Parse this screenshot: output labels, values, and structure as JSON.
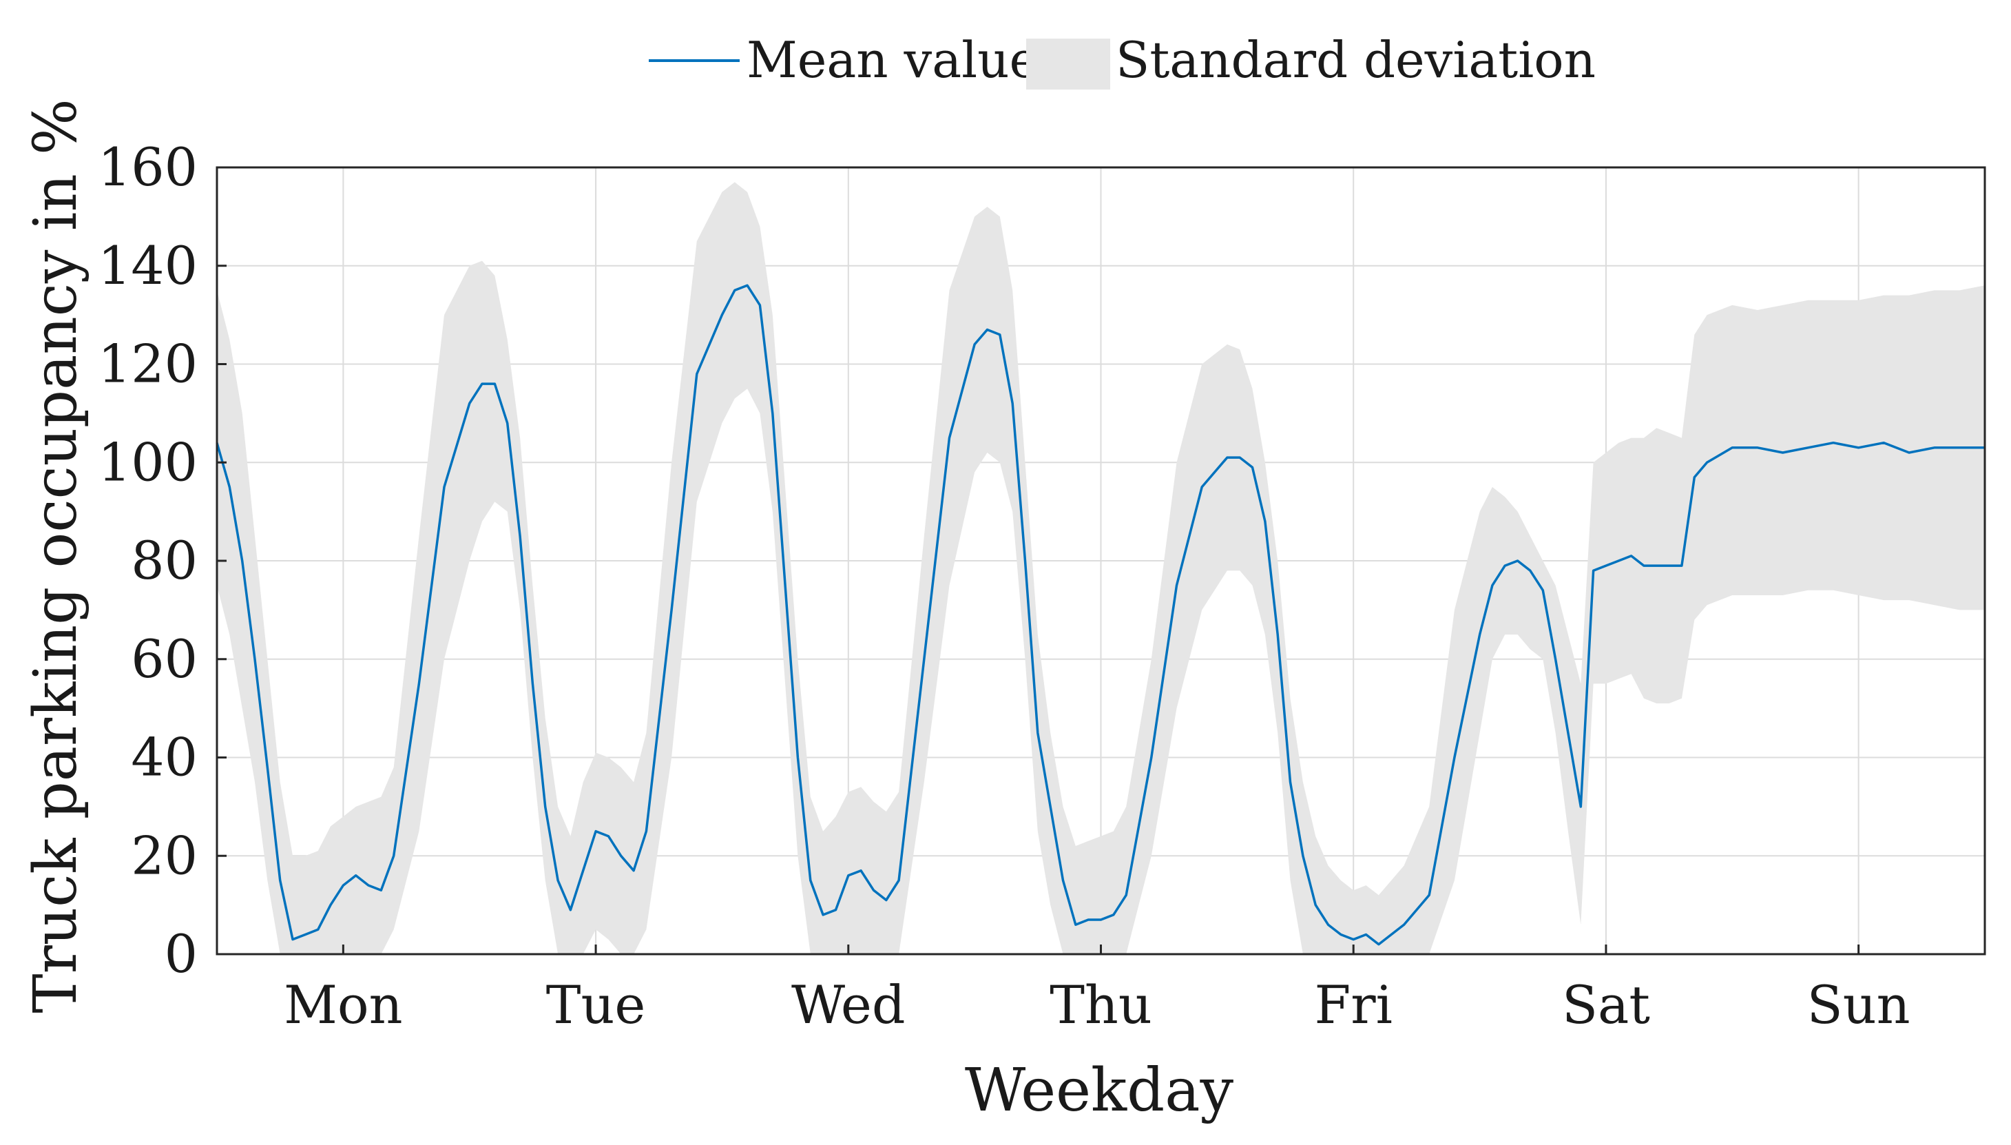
{
  "chart_data": {
    "type": "line",
    "title": "",
    "xlabel": "Weekday",
    "ylabel": "Truck parking occupancy in %",
    "ylim": [
      0,
      160
    ],
    "xlim": [
      0,
      7
    ],
    "y_ticks": [
      "0",
      "20",
      "40",
      "60",
      "80",
      "100",
      "120",
      "140",
      "160"
    ],
    "x_ticks": [
      {
        "label": "Mon",
        "value": 0.5
      },
      {
        "label": "Tue",
        "value": 1.5
      },
      {
        "label": "Wed",
        "value": 2.5
      },
      {
        "label": "Thu",
        "value": 3.5
      },
      {
        "label": "Fri",
        "value": 4.5
      },
      {
        "label": "Sat",
        "value": 5.5
      },
      {
        "label": "Sun",
        "value": 6.5
      }
    ],
    "grid": true,
    "legend": {
      "position": "top",
      "entries": [
        {
          "label": "Mean value",
          "kind": "line",
          "color": "#0072bd"
        },
        {
          "label": "Standard deviation",
          "kind": "band",
          "color": "#e6e6e6"
        }
      ]
    },
    "series": [
      {
        "name": "Mean value",
        "color": "#0072bd",
        "x": [
          0,
          0.05,
          0.1,
          0.15,
          0.2,
          0.25,
          0.3,
          0.35,
          0.4,
          0.45,
          0.5,
          0.55,
          0.6,
          0.65,
          0.7,
          0.8,
          0.9,
          1.0,
          1.05,
          1.1,
          1.15,
          1.2,
          1.25,
          1.3,
          1.35,
          1.4,
          1.45,
          1.5,
          1.55,
          1.6,
          1.65,
          1.7,
          1.8,
          1.9,
          2.0,
          2.05,
          2.1,
          2.15,
          2.2,
          2.25,
          2.3,
          2.35,
          2.4,
          2.45,
          2.5,
          2.55,
          2.6,
          2.65,
          2.7,
          2.8,
          2.9,
          3.0,
          3.05,
          3.1,
          3.15,
          3.2,
          3.25,
          3.3,
          3.35,
          3.4,
          3.45,
          3.5,
          3.55,
          3.6,
          3.7,
          3.8,
          3.9,
          4.0,
          4.05,
          4.1,
          4.15,
          4.2,
          4.25,
          4.3,
          4.35,
          4.4,
          4.45,
          4.5,
          4.55,
          4.6,
          4.7,
          4.8,
          4.9,
          5.0,
          5.05,
          5.1,
          5.15,
          5.2,
          5.25,
          5.3,
          5.35,
          5.4,
          5.45,
          5.5,
          5.55,
          5.6,
          5.65,
          5.7,
          5.75,
          5.8,
          5.85,
          5.9,
          6.0,
          6.1,
          6.2,
          6.3,
          6.4,
          6.5,
          6.6,
          6.7,
          6.8,
          6.9,
          7.0
        ],
        "y": [
          104,
          95,
          80,
          60,
          38,
          15,
          3,
          4,
          5,
          10,
          14,
          16,
          14,
          13,
          20,
          55,
          95,
          112,
          116,
          116,
          108,
          85,
          55,
          30,
          15,
          9,
          17,
          25,
          24,
          20,
          17,
          25,
          70,
          118,
          130,
          135,
          136,
          132,
          110,
          75,
          40,
          15,
          8,
          9,
          16,
          17,
          13,
          11,
          15,
          60,
          105,
          124,
          127,
          126,
          112,
          80,
          45,
          30,
          15,
          6,
          7,
          7,
          8,
          12,
          40,
          75,
          95,
          101,
          101,
          99,
          88,
          65,
          35,
          20,
          10,
          6,
          4,
          3,
          4,
          2,
          6,
          12,
          40,
          65,
          75,
          79,
          80,
          78,
          74,
          60,
          45,
          30,
          78,
          79,
          80,
          81,
          79,
          79,
          79,
          79,
          97,
          100,
          103,
          103,
          102,
          103,
          104,
          103,
          104,
          102,
          103,
          103,
          103
        ]
      }
    ],
    "band": {
      "name": "Standard deviation",
      "color": "#e6e6e6",
      "x": [
        0,
        0.05,
        0.1,
        0.15,
        0.2,
        0.25,
        0.3,
        0.35,
        0.4,
        0.45,
        0.5,
        0.55,
        0.6,
        0.65,
        0.7,
        0.8,
        0.9,
        1.0,
        1.05,
        1.1,
        1.15,
        1.2,
        1.25,
        1.3,
        1.35,
        1.4,
        1.45,
        1.5,
        1.55,
        1.6,
        1.65,
        1.7,
        1.8,
        1.9,
        2.0,
        2.05,
        2.1,
        2.15,
        2.2,
        2.25,
        2.3,
        2.35,
        2.4,
        2.45,
        2.5,
        2.55,
        2.6,
        2.65,
        2.7,
        2.8,
        2.9,
        3.0,
        3.05,
        3.1,
        3.15,
        3.2,
        3.25,
        3.3,
        3.35,
        3.4,
        3.45,
        3.5,
        3.55,
        3.6,
        3.7,
        3.8,
        3.9,
        4.0,
        4.05,
        4.1,
        4.15,
        4.2,
        4.25,
        4.3,
        4.35,
        4.4,
        4.45,
        4.5,
        4.55,
        4.6,
        4.7,
        4.8,
        4.9,
        5.0,
        5.05,
        5.1,
        5.15,
        5.2,
        5.25,
        5.3,
        5.35,
        5.4,
        5.45,
        5.5,
        5.55,
        5.6,
        5.65,
        5.7,
        5.75,
        5.8,
        5.85,
        5.9,
        6.0,
        6.1,
        6.2,
        6.3,
        6.4,
        6.5,
        6.6,
        6.7,
        6.8,
        6.9,
        7.0
      ],
      "upper": [
        135,
        125,
        110,
        85,
        60,
        35,
        20,
        20,
        21,
        26,
        28,
        30,
        31,
        32,
        38,
        85,
        130,
        140,
        141,
        138,
        125,
        105,
        75,
        48,
        30,
        24,
        35,
        41,
        40,
        38,
        35,
        45,
        100,
        145,
        155,
        157,
        155,
        148,
        130,
        95,
        60,
        32,
        25,
        28,
        33,
        34,
        31,
        29,
        33,
        85,
        135,
        150,
        152,
        150,
        135,
        100,
        65,
        45,
        30,
        22,
        23,
        24,
        25,
        30,
        60,
        100,
        120,
        124,
        123,
        115,
        100,
        80,
        52,
        35,
        24,
        18,
        15,
        13,
        14,
        12,
        18,
        30,
        70,
        90,
        95,
        93,
        90,
        85,
        80,
        75,
        65,
        55,
        100,
        102,
        104,
        105,
        105,
        107,
        106,
        105,
        126,
        130,
        132,
        131,
        132,
        133,
        133,
        133,
        134,
        134,
        135,
        135,
        136
      ],
      "lower": [
        75,
        65,
        50,
        35,
        15,
        0,
        0,
        0,
        0,
        0,
        0,
        0,
        0,
        0,
        5,
        25,
        60,
        80,
        88,
        92,
        90,
        70,
        40,
        15,
        0,
        0,
        0,
        5,
        3,
        0,
        0,
        5,
        40,
        92,
        108,
        113,
        115,
        110,
        90,
        55,
        20,
        0,
        0,
        0,
        0,
        0,
        0,
        0,
        0,
        35,
        75,
        98,
        102,
        100,
        90,
        60,
        25,
        10,
        0,
        0,
        0,
        0,
        0,
        0,
        20,
        50,
        70,
        78,
        78,
        75,
        65,
        45,
        15,
        0,
        0,
        0,
        0,
        0,
        0,
        0,
        0,
        0,
        15,
        45,
        60,
        65,
        65,
        62,
        60,
        45,
        25,
        6,
        55,
        55,
        56,
        57,
        52,
        51,
        51,
        52,
        68,
        71,
        73,
        73,
        73,
        74,
        74,
        73,
        72,
        72,
        71,
        70,
        70
      ]
    }
  }
}
